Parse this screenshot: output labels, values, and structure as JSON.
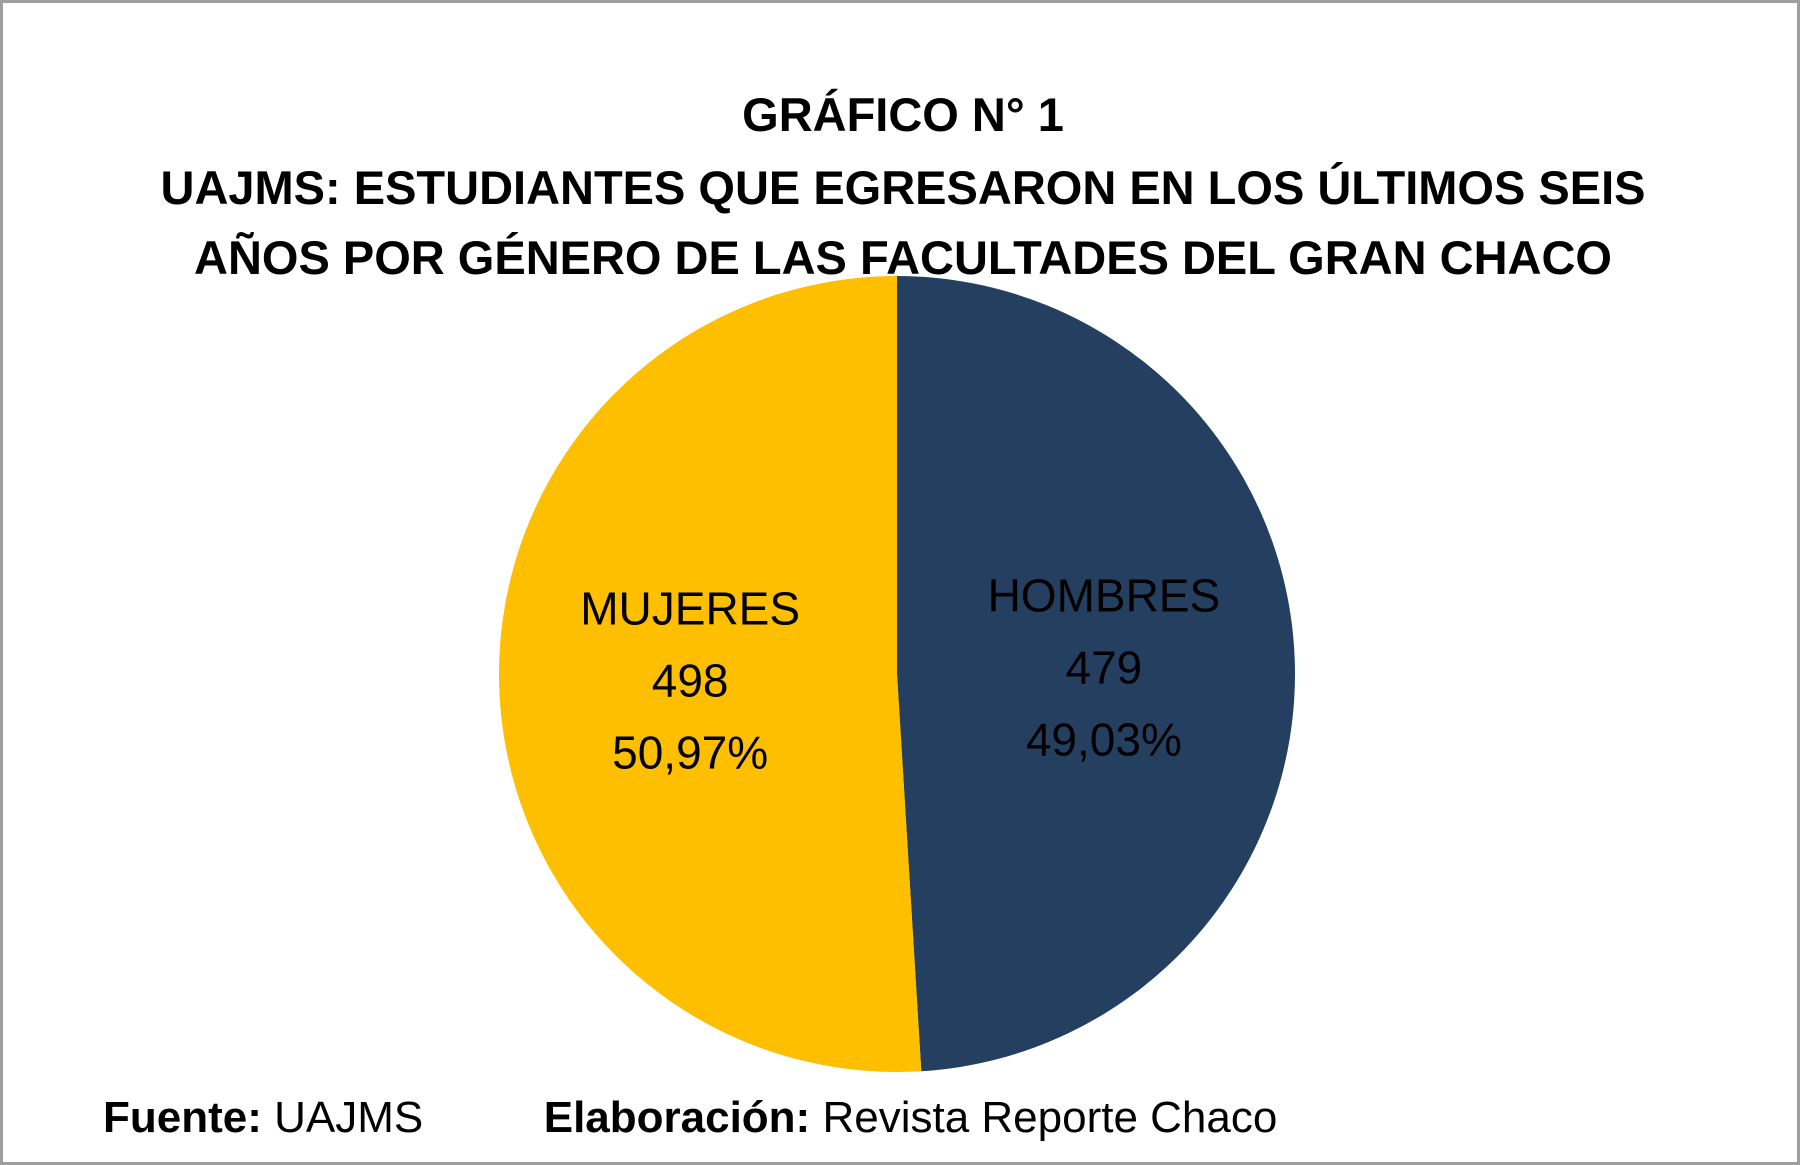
{
  "title_lines": [
    "GRÁFICO N° 1",
    "UAJMS: ESTUDIANTES QUE EGRESARON EN LOS ÚLTIMOS SEIS",
    "AÑOS POR GÉNERO DE LAS FACULTADES DEL GRAN CHACO"
  ],
  "chart_data": {
    "type": "pie",
    "title": "GRÁFICO N° 1 UAJMS: ESTUDIANTES QUE EGRESARON EN LOS ÚLTIMOS SEIS AÑOS POR GÉNERO DE LAS FACULTADES DEL GRAN CHACO",
    "slices": [
      {
        "label": "HOMBRES",
        "value": 479,
        "percent": "49,03%",
        "color": "#253f61"
      },
      {
        "label": "MUJERES",
        "value": 498,
        "percent": "50,97%",
        "color": "#fdbf00"
      }
    ],
    "start_angle": "12 o'clock",
    "direction": "clockwise",
    "legend": "none"
  },
  "footer": {
    "source_key": "Fuente:",
    "source_value": "UAJMS",
    "author_key": "Elaboración:",
    "author_value": "Revista Reporte Chaco"
  }
}
